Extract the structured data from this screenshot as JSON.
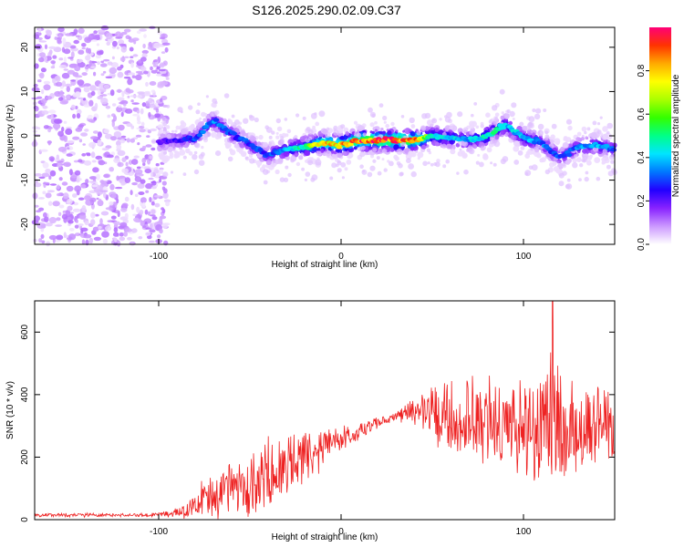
{
  "title": "S126.2025.290.02.09.C37",
  "chart_data": [
    {
      "type": "heatmap",
      "xlabel": "Height of straight line (km)",
      "ylabel": "Frequency (Hz)",
      "xlim": [
        -168,
        150
      ],
      "ylim": [
        -24.5,
        24.5
      ],
      "xticks": [
        -100,
        0,
        100
      ],
      "yticks": [
        -20,
        -10,
        0,
        10,
        20
      ],
      "colorbar": {
        "label": "Normalized spectral amplitude",
        "range": [
          0,
          1
        ],
        "ticks": [
          "0.0",
          "0.2",
          "0.4",
          "0.6",
          "0.8"
        ],
        "tick_values": [
          0,
          0.2,
          0.4,
          0.6,
          0.8
        ]
      },
      "ridge": {
        "description": "Strong narrow ridge near 0 Hz from about -100 km to 150 km; weak noise below -95 km",
        "height_km": [
          -100,
          -90,
          -80,
          -70,
          -60,
          -50,
          -40,
          -30,
          -20,
          -10,
          0,
          10,
          20,
          30,
          40,
          50,
          60,
          70,
          80,
          90,
          100,
          110,
          120,
          130,
          140,
          148
        ],
        "freq_hz": [
          -1.5,
          -1,
          -0.5,
          3.5,
          0.5,
          -2,
          -4.5,
          -3,
          -2.5,
          -1.5,
          -2,
          -1,
          -1,
          -1,
          -1,
          0,
          -0.5,
          -1,
          0,
          2.5,
          -0.5,
          -1.5,
          -5,
          -2.5,
          -2,
          -3
        ],
        "amplitude": [
          0.2,
          0.25,
          0.3,
          0.35,
          0.3,
          0.3,
          0.3,
          0.4,
          0.55,
          0.8,
          0.8,
          0.95,
          0.95,
          0.95,
          0.9,
          0.5,
          0.45,
          0.4,
          0.5,
          0.45,
          0.4,
          0.35,
          0.3,
          0.35,
          0.4,
          0.35
        ]
      }
    },
    {
      "type": "line",
      "xlabel": "Height of straight line (km)",
      "ylabel": "SNR (10 * v/v)",
      "xlim": [
        -168,
        150
      ],
      "ylim": [
        0,
        700
      ],
      "xticks": [
        -100,
        0,
        100
      ],
      "yticks": [
        0,
        200,
        400,
        600
      ],
      "series": [
        {
          "name": "SNR",
          "color": "#ee2222",
          "x": [
            -168,
            -150,
            -130,
            -110,
            -95,
            -85,
            -80,
            -70,
            -60,
            -50,
            -40,
            -30,
            -20,
            -10,
            0,
            10,
            20,
            30,
            40,
            50,
            60,
            70,
            80,
            90,
            100,
            110,
            115,
            120,
            130,
            140,
            150
          ],
          "mean": [
            15,
            15,
            15,
            15,
            18,
            30,
            50,
            75,
            100,
            125,
            150,
            175,
            205,
            235,
            255,
            280,
            310,
            330,
            345,
            345,
            335,
            320,
            310,
            305,
            300,
            300,
            305,
            300,
            290,
            290,
            300
          ],
          "spread": [
            5,
            5,
            5,
            5,
            8,
            20,
            35,
            55,
            70,
            80,
            90,
            90,
            70,
            50,
            35,
            25,
            15,
            12,
            40,
            80,
            100,
            110,
            115,
            120,
            130,
            150,
            180,
            160,
            130,
            110,
            100
          ],
          "peak": {
            "x": 116,
            "y": 700
          }
        }
      ]
    }
  ],
  "colors": {
    "line": "#ee2222",
    "axis": "#000000",
    "colormap": [
      "#ffffff",
      "#cc99ff",
      "#8822ff",
      "#2200ff",
      "#0077ff",
      "#00e5ff",
      "#00ff88",
      "#33ff00",
      "#aaff00",
      "#ffff00",
      "#ffaa00",
      "#ff3300",
      "#ff0077"
    ]
  }
}
